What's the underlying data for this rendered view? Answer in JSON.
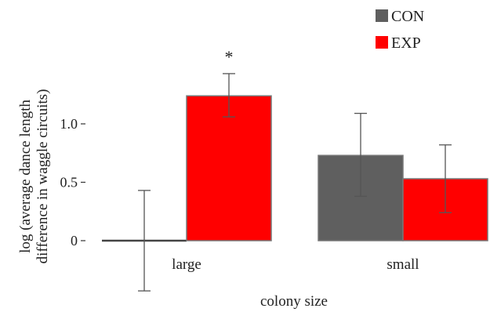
{
  "chart_data": {
    "type": "bar",
    "categories": [
      "large",
      "small"
    ],
    "series": [
      {
        "name": "CON",
        "color": "#5f5f5f",
        "values": [
          0,
          0.73
        ],
        "error_low": [
          -0.43,
          0.38
        ],
        "error_high": [
          0.43,
          1.09
        ]
      },
      {
        "name": "EXP",
        "color": "#ff0000",
        "values": [
          1.24,
          0.53
        ],
        "error_low": [
          1.06,
          0.24
        ],
        "error_high": [
          1.43,
          0.82
        ]
      }
    ],
    "xlabel": "colony size",
    "ylabel_lines": [
      "log (average dance length",
      "difference in waggle circuits)"
    ],
    "yticks": [
      {
        "value": 0,
        "label": "0"
      },
      {
        "value": 0.5,
        "label": "0.5"
      },
      {
        "value": 1.0,
        "label": "1.0"
      }
    ],
    "ylim": [
      -0.45,
      1.6
    ],
    "annotations": [
      {
        "category": "large",
        "series": "EXP",
        "text": "*"
      }
    ],
    "legend_position": "top-right",
    "grid": false
  }
}
